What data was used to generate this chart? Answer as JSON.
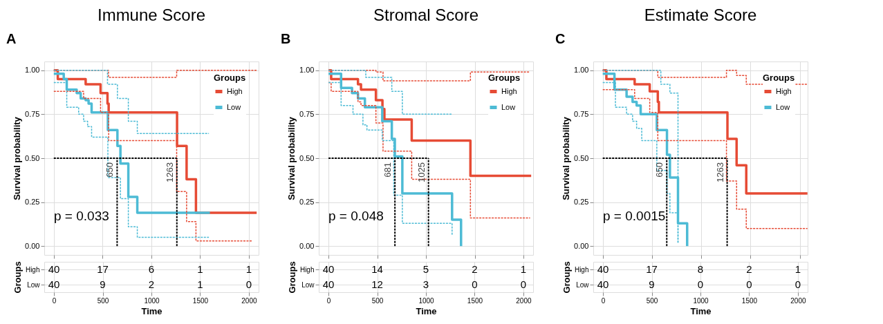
{
  "chart_data": [
    {
      "type": "step",
      "title": "Immune Score",
      "ylabel": "Survival probability",
      "legend_title": "Groups",
      "legend": "top right",
      "grid": true,
      "tick_labels": "y",
      "annotations": [
        "A",
        "p = 0.033"
      ],
      "xlim": [
        -98,
        2102
      ],
      "xticks": [
        {
          "value": 0,
          "label": null
        },
        {
          "value": 500,
          "label": null
        },
        {
          "value": 1000,
          "label": null
        },
        {
          "value": 1500,
          "label": null
        },
        {
          "value": 2000,
          "label": null
        }
      ],
      "ylim": [
        -0.05,
        1.05
      ],
      "yticks": [
        {
          "value": 0,
          "label": "0.00"
        },
        {
          "value": 0.25,
          "label": "0.25"
        },
        {
          "value": 0.5,
          "label": "0.50"
        },
        {
          "value": 0.75,
          "label": "0.75"
        },
        {
          "value": 1,
          "label": "1.00"
        }
      ],
      "ref_lines": [
        {
          "axis": "y",
          "value": 0.5,
          "color": "#000000",
          "line_style": "dashed"
        },
        {
          "axis": "x",
          "value": 650,
          "label": "650",
          "color": "#000000",
          "line_style": "dashed"
        },
        {
          "axis": "x",
          "value": 1263,
          "label": "1263",
          "color": "#000000",
          "line_style": "dashed"
        }
      ],
      "series": [
        {
          "name": "High",
          "color": "#e64b35",
          "line_style": "solid",
          "x": [
            0,
            41,
            327,
            480,
            551,
            563,
            1265,
            1363,
            1459,
            2082
          ],
          "values": [
            1.0,
            0.95,
            0.92,
            0.87,
            0.81,
            0.76,
            0.57,
            0.38,
            0.19,
            0.19
          ]
        },
        {
          "name": "Low",
          "color": "#4dbbd5",
          "line_style": "solid",
          "x": [
            0,
            102,
            133,
            235,
            276,
            327,
            357,
            388,
            555,
            653,
            684,
            765,
            857,
            1602
          ],
          "values": [
            0.98,
            0.95,
            0.89,
            0.87,
            0.84,
            0.83,
            0.81,
            0.76,
            0.66,
            0.57,
            0.47,
            0.28,
            0.19,
            0.19
          ]
        },
        {
          "color": "#e64b35",
          "line_style": "dashed",
          "x": [
            0,
            561,
            1261,
            2082
          ],
          "values": [
            1.0,
            0.96,
            1.0,
            1.0
          ]
        },
        {
          "color": "#e64b35",
          "line_style": "dashed",
          "x": [
            0,
            306,
            480,
            563,
            1261,
            1363,
            1459,
            2031
          ],
          "values": [
            0.88,
            0.84,
            0.76,
            0.6,
            0.31,
            0.14,
            0.03,
            0.03
          ]
        },
        {
          "color": "#4dbbd5",
          "line_style": "dashed",
          "x": [
            0,
            551,
            653,
            765,
            857,
            1592
          ],
          "values": [
            1.0,
            0.92,
            0.84,
            0.71,
            0.64,
            0.64
          ]
        },
        {
          "color": "#4dbbd5",
          "line_style": "dashed",
          "x": [
            0,
            133,
            255,
            306,
            347,
            388,
            555,
            684,
            765,
            857,
            1592
          ],
          "values": [
            0.93,
            0.79,
            0.75,
            0.71,
            0.68,
            0.62,
            0.39,
            0.27,
            0.11,
            0.05,
            0.05
          ]
        }
      ]
    },
    {
      "type": "heatmap",
      "xlabel": "Time",
      "ylabel": "Groups",
      "grid": true,
      "data_labels": true,
      "categories": [
        "0",
        "500",
        "1000",
        "1500",
        "2000"
      ],
      "y_categories": [
        "High",
        "Low"
      ],
      "cells": [
        [
          40,
          17,
          6,
          1,
          1
        ],
        [
          40,
          9,
          2,
          1,
          0
        ]
      ]
    },
    {
      "type": "step",
      "title": "Stromal Score",
      "ylabel": "Survival probability",
      "legend_title": "Groups",
      "legend": "top right",
      "grid": true,
      "tick_labels": "y",
      "annotations": [
        "B",
        "p = 0.048"
      ],
      "xlim": [
        -100,
        2098
      ],
      "xticks": [
        {
          "value": 0,
          "label": null
        },
        {
          "value": 500,
          "label": null
        },
        {
          "value": 1000,
          "label": null
        },
        {
          "value": 1500,
          "label": null
        },
        {
          "value": 2000,
          "label": null
        }
      ],
      "ylim": [
        -0.05,
        1.05
      ],
      "yticks": [
        {
          "value": 0,
          "label": "0.00"
        },
        {
          "value": 0.25,
          "label": "0.25"
        },
        {
          "value": 0.5,
          "label": "0.50"
        },
        {
          "value": 0.75,
          "label": "0.75"
        },
        {
          "value": 1,
          "label": "1.00"
        }
      ],
      "ref_lines": [
        {
          "axis": "y",
          "value": 0.5,
          "color": "#000000",
          "line_style": "dashed"
        },
        {
          "axis": "x",
          "value": 681,
          "label": "681",
          "color": "#000000",
          "line_style": "dashed"
        },
        {
          "axis": "x",
          "value": 1025,
          "label": "1025",
          "color": "#000000",
          "line_style": "dashed"
        }
      ],
      "series": [
        {
          "name": "High",
          "color": "#e64b35",
          "line_style": "solid",
          "x": [
            0,
            27,
            302,
            333,
            486,
            553,
            573,
            853,
            1455,
            2078
          ],
          "values": [
            1.0,
            0.95,
            0.92,
            0.89,
            0.83,
            0.78,
            0.72,
            0.6,
            0.4,
            0.4
          ]
        },
        {
          "name": "Low",
          "color": "#4dbbd5",
          "line_style": "solid",
          "x": [
            0,
            129,
            241,
            302,
            373,
            551,
            649,
            680,
            757,
            1267,
            1359
          ],
          "values": [
            0.98,
            0.9,
            0.87,
            0.84,
            0.79,
            0.71,
            0.61,
            0.51,
            0.3,
            0.15,
            0.0
          ]
        },
        {
          "color": "#e64b35",
          "line_style": "dashed",
          "x": [
            0,
            486,
            559,
            1455,
            2067
          ],
          "values": [
            1.0,
            0.99,
            0.94,
            0.99,
            0.99
          ]
        },
        {
          "color": "#e64b35",
          "line_style": "dashed",
          "x": [
            0,
            27,
            302,
            333,
            486,
            559,
            853,
            1455,
            2067
          ],
          "values": [
            0.93,
            0.88,
            0.82,
            0.8,
            0.7,
            0.54,
            0.38,
            0.16,
            0.16
          ]
        },
        {
          "color": "#4dbbd5",
          "line_style": "dashed",
          "x": [
            0,
            382,
            649,
            757,
            1267
          ],
          "values": [
            1.0,
            0.96,
            0.88,
            0.75,
            0.75
          ]
        },
        {
          "color": "#4dbbd5",
          "line_style": "dashed",
          "x": [
            0,
            129,
            251,
            353,
            394,
            551,
            669,
            757,
            1267
          ],
          "values": [
            0.93,
            0.8,
            0.75,
            0.69,
            0.66,
            0.6,
            0.29,
            0.13,
            0.06
          ]
        }
      ]
    },
    {
      "type": "heatmap",
      "xlabel": "Time",
      "ylabel": "Groups",
      "grid": true,
      "data_labels": true,
      "categories": [
        "0",
        "500",
        "1000",
        "1500",
        "2000"
      ],
      "y_categories": [
        "High",
        "Low"
      ],
      "cells": [
        [
          40,
          14,
          5,
          2,
          1
        ],
        [
          40,
          12,
          3,
          0,
          0
        ]
      ]
    },
    {
      "type": "step",
      "title": "Estimate Score",
      "ylabel": "Survival probability",
      "legend_title": "Groups",
      "legend": "top right",
      "grid": true,
      "tick_labels": "y",
      "annotations": [
        "C",
        "p = 0.0015"
      ],
      "xlim": [
        -96,
        2080
      ],
      "xticks": [
        {
          "value": 0,
          "label": null
        },
        {
          "value": 500,
          "label": null
        },
        {
          "value": 1000,
          "label": null
        },
        {
          "value": 1500,
          "label": null
        },
        {
          "value": 2000,
          "label": null
        }
      ],
      "ylim": [
        -0.05,
        1.05
      ],
      "yticks": [
        {
          "value": 0,
          "label": "0.00"
        },
        {
          "value": 0.25,
          "label": "0.25"
        },
        {
          "value": 0.5,
          "label": "0.50"
        },
        {
          "value": 0.75,
          "label": "0.75"
        },
        {
          "value": 1,
          "label": "1.00"
        }
      ],
      "ref_lines": [
        {
          "axis": "y",
          "value": 0.5,
          "color": "#000000",
          "line_style": "dashed"
        },
        {
          "axis": "x",
          "value": 650,
          "label": "650",
          "color": "#000000",
          "line_style": "dashed"
        },
        {
          "axis": "x",
          "value": 1263,
          "label": "1263",
          "color": "#000000",
          "line_style": "dashed"
        }
      ],
      "series": [
        {
          "name": "High",
          "color": "#e64b35",
          "line_style": "solid",
          "x": [
            0,
            37,
            324,
            477,
            559,
            570,
            1266,
            1359,
            1457,
            2078
          ],
          "values": [
            1.0,
            0.95,
            0.92,
            0.88,
            0.82,
            0.76,
            0.61,
            0.46,
            0.3,
            0.3
          ]
        },
        {
          "name": "Low",
          "color": "#4dbbd5",
          "line_style": "solid",
          "x": [
            0,
            119,
            242,
            303,
            344,
            385,
            549,
            652,
            682,
            764,
            857
          ],
          "values": [
            0.98,
            0.89,
            0.85,
            0.82,
            0.8,
            0.75,
            0.66,
            0.52,
            0.39,
            0.13,
            0.0
          ]
        },
        {
          "color": "#e64b35",
          "line_style": "dashed",
          "x": [
            0,
            559,
            1256,
            1359,
            1457,
            2078
          ],
          "values": [
            1.0,
            0.96,
            1.0,
            0.97,
            0.92,
            0.92
          ]
        },
        {
          "color": "#e64b35",
          "line_style": "dashed",
          "x": [
            0,
            324,
            477,
            559,
            1256,
            1359,
            1457,
            2078
          ],
          "values": [
            0.89,
            0.84,
            0.76,
            0.6,
            0.37,
            0.21,
            0.1,
            0.1
          ]
        },
        {
          "color": "#4dbbd5",
          "line_style": "dashed",
          "x": [
            0,
            590,
            682,
            764
          ],
          "values": [
            1.0,
            0.92,
            0.87,
            0.02
          ]
        },
        {
          "color": "#4dbbd5",
          "line_style": "dashed",
          "x": [
            0,
            129,
            242,
            303,
            344,
            396,
            549,
            652,
            682,
            764
          ],
          "values": [
            0.93,
            0.79,
            0.75,
            0.71,
            0.67,
            0.6,
            0.43,
            0.3,
            0.19,
            0.02
          ]
        }
      ]
    },
    {
      "type": "heatmap",
      "xlabel": "Time",
      "ylabel": "Groups",
      "grid": true,
      "data_labels": true,
      "categories": [
        "0",
        "500",
        "1000",
        "1500",
        "2000"
      ],
      "y_categories": [
        "High",
        "Low"
      ],
      "cells": [
        [
          40,
          17,
          8,
          2,
          1
        ],
        [
          40,
          9,
          0,
          0,
          0
        ]
      ]
    }
  ]
}
